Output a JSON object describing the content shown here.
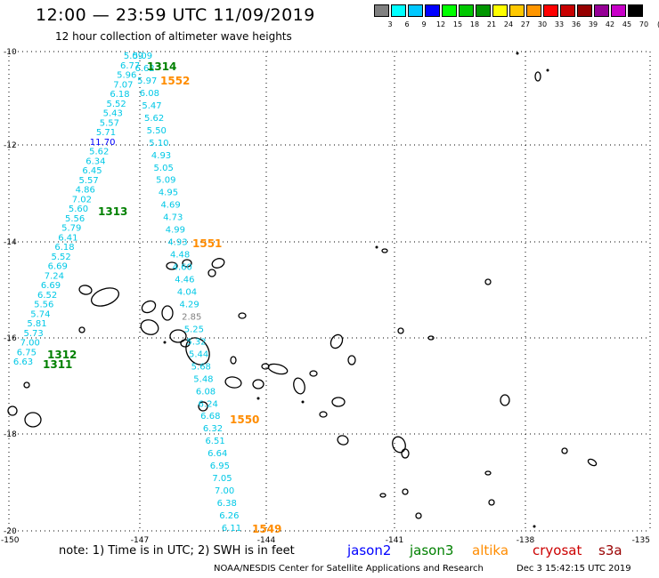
{
  "header": {
    "title": "12:00 — 23:59 UTC 11/09/2019",
    "subtitle": "12 hour collection of altimeter wave heights"
  },
  "colorbar": {
    "labels": [
      "3",
      "6",
      "9",
      "12",
      "15",
      "18",
      "21",
      "24",
      "27",
      "30",
      "33",
      "36",
      "39",
      "42",
      "45",
      "70"
    ],
    "unit": "(ft)",
    "colors": [
      "#808080",
      "#00ffff",
      "#00c8ff",
      "#0000ff",
      "#00ff00",
      "#00c800",
      "#009600",
      "#ffff00",
      "#ffc800",
      "#ff9600",
      "#ff0000",
      "#c80000",
      "#960000",
      "#960096",
      "#c800c8",
      "#000000"
    ]
  },
  "axes": {
    "lat_ticks": [
      "-10",
      "-12",
      "-14",
      "-16",
      "-18",
      "-20"
    ],
    "lon_ticks": [
      "-150",
      "-147",
      "-144",
      "-141",
      "-138",
      "-135"
    ]
  },
  "track_labels": [
    {
      "id": "1314",
      "color": "#008000"
    },
    {
      "id": "1552",
      "color": "#ff8c00"
    },
    {
      "id": "1313",
      "color": "#008000"
    },
    {
      "id": "1551",
      "color": "#ff8c00"
    },
    {
      "id": "1312",
      "color": "#008000"
    },
    {
      "id": "1311",
      "color": "#008000"
    },
    {
      "id": "1550",
      "color": "#ff8c00"
    },
    {
      "id": "1549",
      "color": "#ff8c00"
    }
  ],
  "tracks": {
    "left": [
      "5.09",
      "6.77",
      "5.96",
      "7.07",
      "6.18",
      "5.52",
      "5.43",
      "5.57",
      "5.71",
      "11.70",
      "5.62",
      "6.34",
      "6.45",
      "5.57",
      "4.86",
      "7.02",
      "5.60",
      "5.56",
      "5.79",
      "6.41",
      "6.18",
      "5.52",
      "6.69",
      "7.24",
      "6.69",
      "6.52",
      "5.56",
      "5.74",
      "5.81",
      "5.73",
      "7.00",
      "6.75",
      "6.63"
    ],
    "middle": [
      "5.09",
      "6.62",
      "5.97",
      "6.08",
      "5.47",
      "5.62",
      "5.50",
      "5.10",
      "4.93",
      "5.05",
      "5.09",
      "4.95",
      "4.69",
      "4.73",
      "4.99",
      "4.93",
      "4.48",
      "4.60",
      "4.46",
      "4.04",
      "4.29",
      "2.85",
      "5.25",
      "5.32",
      "5.44",
      "5.68",
      "5.48",
      "6.08",
      "6.24",
      "6.68",
      "6.32",
      "6.51",
      "6.64",
      "6.95",
      "7.05",
      "7.00",
      "6.38",
      "6.26",
      "6.11"
    ]
  },
  "note": "note:  1) Time is in UTC; 2) SWH is in feet",
  "satellites": [
    {
      "name": "jason2",
      "color": "#0000ff"
    },
    {
      "name": "jason3",
      "color": "#008000"
    },
    {
      "name": "altika",
      "color": "#ff8c00"
    },
    {
      "name": "cryosat",
      "color": "#cc0000"
    },
    {
      "name": "s3a",
      "color": "#990000"
    }
  ],
  "footer": {
    "credit": "NOAA/NESDIS Center for Satellite Applications and Research",
    "timestamp": "Dec  3 15:42:15 UTC 2019"
  }
}
